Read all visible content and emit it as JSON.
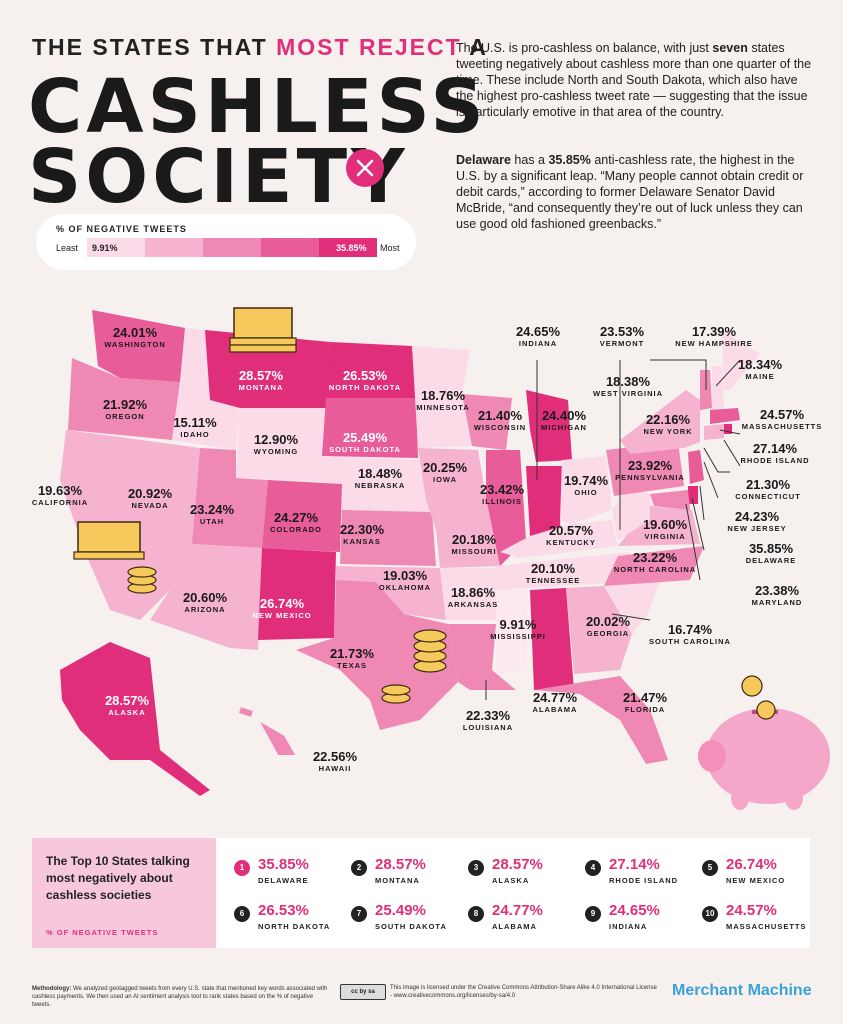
{
  "header": {
    "line1_pre": "THE STATES THAT",
    "line1_accent": "MOST REJECT",
    "line1_post": "A",
    "line2": "CASHLESS",
    "line3": "SOCIETY"
  },
  "legend": {
    "title": "% OF NEGATIVE TWEETS",
    "least": "Least",
    "most": "Most",
    "min": "9.91%",
    "max": "35.85%",
    "colors": [
      "#fbdbe8",
      "#f6b3cf",
      "#ef89b4",
      "#e85c99",
      "#e12e7a"
    ]
  },
  "intro": {
    "p1_a": "The U.S. is pro-cashless on balance, with just",
    "p1_bold": "seven",
    "p1_b": "states tweeting negatively about cashless more than one quarter of the time. These include North and South Dakota, which also have the highest pro-cashless tweet rate — suggesting that the issue is particularly emotive in that area of the country.",
    "p2_bold1": "Delaware",
    "p2_a": "has a",
    "p2_bold2": "35.85%",
    "p2_b": "anti-cashless rate, the highest in the U.S. by a significant leap. “Many people cannot obtain credit or debit cards,” according to former Delaware Senator David McBride, “and consequently they’re out of luck unless they can use good old fashioned greenbacks.”"
  },
  "states": [
    {
      "name": "WASHINGTON",
      "pct": "24.01%"
    },
    {
      "name": "OREGON",
      "pct": "21.92%"
    },
    {
      "name": "CALIFORNIA",
      "pct": "19.63%"
    },
    {
      "name": "IDAHO",
      "pct": "15.11%"
    },
    {
      "name": "NEVADA",
      "pct": "20.92%"
    },
    {
      "name": "MONTANA",
      "pct": "28.57%"
    },
    {
      "name": "WYOMING",
      "pct": "12.90%"
    },
    {
      "name": "UTAH",
      "pct": "23.24%"
    },
    {
      "name": "ARIZONA",
      "pct": "20.60%"
    },
    {
      "name": "COLORADO",
      "pct": "24.27%"
    },
    {
      "name": "NEW MEXICO",
      "pct": "26.74%"
    },
    {
      "name": "NORTH DAKOTA",
      "pct": "26.53%"
    },
    {
      "name": "SOUTH DAKOTA",
      "pct": "25.49%"
    },
    {
      "name": "NEBRASKA",
      "pct": "18.48%"
    },
    {
      "name": "KANSAS",
      "pct": "22.30%"
    },
    {
      "name": "OKLAHOMA",
      "pct": "19.03%"
    },
    {
      "name": "TEXAS",
      "pct": "21.73%"
    },
    {
      "name": "MINNESOTA",
      "pct": "18.76%"
    },
    {
      "name": "IOWA",
      "pct": "20.25%"
    },
    {
      "name": "MISSOURI",
      "pct": "20.18%"
    },
    {
      "name": "ARKANSAS",
      "pct": "18.86%"
    },
    {
      "name": "LOUISIANA",
      "pct": "22.33%"
    },
    {
      "name": "WISCONSIN",
      "pct": "21.40%"
    },
    {
      "name": "ILLINOIS",
      "pct": "23.42%"
    },
    {
      "name": "MICHIGAN",
      "pct": "24.40%"
    },
    {
      "name": "INDIANA",
      "pct": "24.65%"
    },
    {
      "name": "OHIO",
      "pct": "19.74%"
    },
    {
      "name": "KENTUCKY",
      "pct": "20.57%"
    },
    {
      "name": "TENNESSEE",
      "pct": "20.10%"
    },
    {
      "name": "MISSISSIPPI",
      "pct": "9.91%"
    },
    {
      "name": "ALABAMA",
      "pct": "24.77%"
    },
    {
      "name": "GEORGIA",
      "pct": "20.02%"
    },
    {
      "name": "FLORIDA",
      "pct": "21.47%"
    },
    {
      "name": "SOUTH CAROLINA",
      "pct": "16.74%"
    },
    {
      "name": "NORTH CAROLINA",
      "pct": "23.22%"
    },
    {
      "name": "VIRGINIA",
      "pct": "19.60%"
    },
    {
      "name": "WEST VIRGINIA",
      "pct": "18.38%"
    },
    {
      "name": "PENNSYLVANIA",
      "pct": "23.92%"
    },
    {
      "name": "NEW YORK",
      "pct": "22.16%"
    },
    {
      "name": "VERMONT",
      "pct": "23.53%"
    },
    {
      "name": "NEW HAMPSHIRE",
      "pct": "17.39%"
    },
    {
      "name": "MAINE",
      "pct": "18.34%"
    },
    {
      "name": "MASSACHUSETTS",
      "pct": "24.57%"
    },
    {
      "name": "RHODE ISLAND",
      "pct": "27.14%"
    },
    {
      "name": "CONNECTICUT",
      "pct": "21.30%"
    },
    {
      "name": "NEW JERSEY",
      "pct": "24.23%"
    },
    {
      "name": "DELAWARE",
      "pct": "35.85%"
    },
    {
      "name": "MARYLAND",
      "pct": "23.38%"
    },
    {
      "name": "ALASKA",
      "pct": "28.57%"
    },
    {
      "name": "HAWAII",
      "pct": "22.56%"
    }
  ],
  "top10": {
    "title": "The Top 10 States talking most negatively about cashless societies",
    "subtitle": "% OF NEGATIVE TWEETS",
    "items": [
      {
        "rank": "1",
        "pct": "35.85%",
        "name": "DELAWARE"
      },
      {
        "rank": "2",
        "pct": "28.57%",
        "name": "MONTANA"
      },
      {
        "rank": "3",
        "pct": "28.57%",
        "name": "ALASKA"
      },
      {
        "rank": "4",
        "pct": "27.14%",
        "name": "RHODE ISLAND"
      },
      {
        "rank": "5",
        "pct": "26.74%",
        "name": "NEW MEXICO"
      },
      {
        "rank": "6",
        "pct": "26.53%",
        "name": "NORTH DAKOTA"
      },
      {
        "rank": "7",
        "pct": "25.49%",
        "name": "SOUTH DAKOTA"
      },
      {
        "rank": "8",
        "pct": "24.77%",
        "name": "ALABAMA"
      },
      {
        "rank": "9",
        "pct": "24.65%",
        "name": "INDIANA"
      },
      {
        "rank": "10",
        "pct": "24.57%",
        "name": "MASSACHUSETTS"
      }
    ]
  },
  "footer": {
    "method_label": "Methodology:",
    "method": "We analyzed geotagged tweets from every U.S. state that mentioned key words associated with cashless payments. We then used an AI sentiment analysis tool to rank states based on the % of negative tweets.",
    "cc_label": "cc by sa",
    "license": "This image is licensed under the Creative Commons Attribution-Share Alike 4.0 International License - www.creativecommons.org/licenses/by-sa/4.0",
    "brand": "Merchant Machine"
  }
}
